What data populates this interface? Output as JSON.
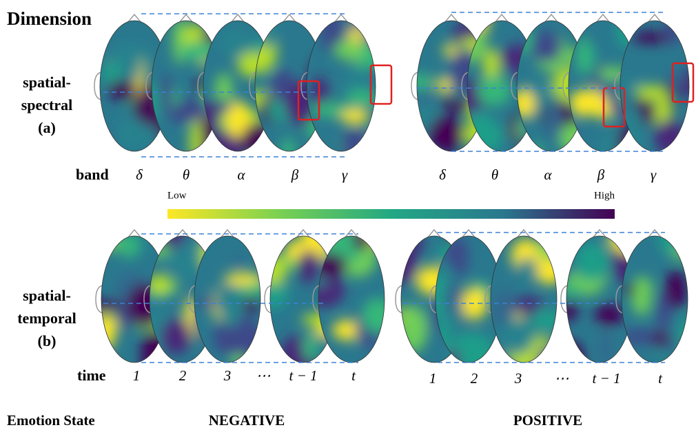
{
  "header": {
    "title": "Dimension"
  },
  "spectral": {
    "label": [
      "spatial-",
      "spectral",
      "(a)"
    ],
    "axis_label": "band",
    "negative_ticks": [
      "δ",
      "θ",
      "α",
      "β",
      "γ"
    ],
    "positive_ticks": [
      "δ",
      "θ",
      "α",
      "β",
      "γ"
    ]
  },
  "colorbar": {
    "low": "Low",
    "high": "High"
  },
  "temporal": {
    "label": [
      "spatial-",
      "temporal",
      "(b)"
    ],
    "axis_label": "time",
    "negative_ticks": [
      "1",
      "2",
      "3",
      "⋯",
      "t − 1",
      "t"
    ],
    "positive_ticks": [
      "1",
      "2",
      "3",
      "⋯",
      "t − 1",
      "t"
    ]
  },
  "footer": {
    "label": "Emotion State",
    "negative": "NEGATIVE",
    "positive": "POSITIVE"
  }
}
